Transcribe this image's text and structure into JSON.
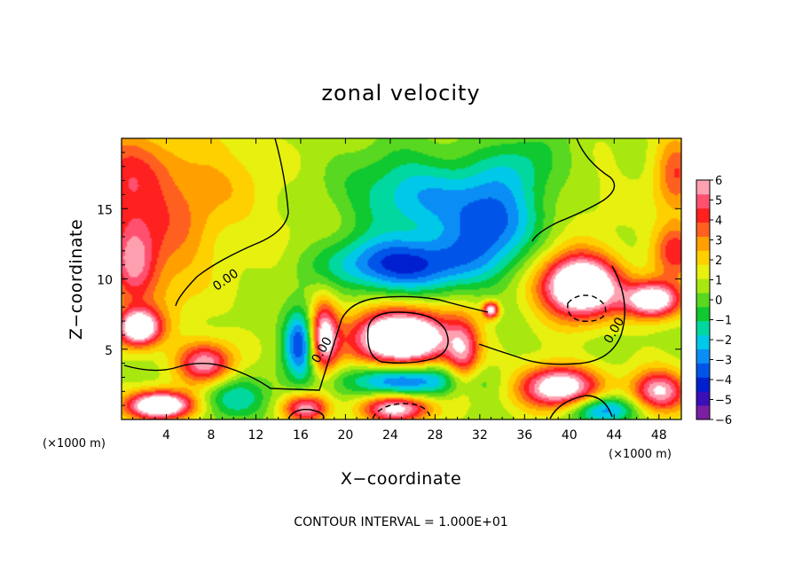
{
  "chart_data": {
    "type": "heatmap",
    "title": "zonal velocity",
    "xlabel": "X−coordinate",
    "ylabel": "Z−coordinate",
    "x_unit": "(×1000 m)",
    "y_unit": "(×1000 m)",
    "xlim": [
      0,
      50
    ],
    "ylim": [
      0,
      20
    ],
    "x_ticks": [
      4,
      8,
      12,
      16,
      20,
      24,
      28,
      32,
      36,
      40,
      44,
      48
    ],
    "y_ticks": [
      5,
      10,
      15
    ],
    "colorbar": {
      "range": [
        -6,
        6
      ],
      "ticks": [
        6,
        5,
        4,
        3,
        2,
        1,
        0,
        -1,
        -2,
        -3,
        -4,
        -5,
        -6
      ],
      "tick_labels": [
        "6",
        "5",
        "4",
        "3",
        "2",
        "1",
        "0",
        "−1",
        "−2",
        "−3",
        "−4",
        "−5",
        "−6"
      ],
      "colors": [
        "#7a1fa2",
        "#3a10b8",
        "#0020d0",
        "#0055e8",
        "#0a8ef5",
        "#00c8e8",
        "#00d8a0",
        "#10c830",
        "#58d820",
        "#a8e810",
        "#e8f010",
        "#ffd000",
        "#ffa000",
        "#ff6020",
        "#ff2020",
        "#ff5070",
        "#ffa0b0"
      ]
    },
    "contour_labels": [
      "0.00",
      "0.00",
      "0.00"
    ],
    "zero_contour_label_positions": [
      [
        9.5,
        9.7
      ],
      [
        18.2,
        4.8
      ],
      [
        44.3,
        6.2
      ]
    ],
    "note": "CONTOUR INTERVAL = 1.000E+01",
    "features": [
      {
        "x": 0,
        "z": 17,
        "value": 3.2,
        "sx": 4,
        "sz": 4
      },
      {
        "x": 1,
        "z": 11,
        "value": 3.5,
        "sx": 2,
        "sz": 3
      },
      {
        "x": 4,
        "z": 12,
        "value": 2.0,
        "sx": 4,
        "sz": 5
      },
      {
        "x": 8,
        "z": 17,
        "value": 1.5,
        "sx": 5,
        "sz": 4
      },
      {
        "x": 16,
        "z": 12,
        "value": 0.5,
        "sx": 6,
        "sz": 4
      },
      {
        "x": 26,
        "z": 16,
        "value": -3.0,
        "sx": 6,
        "sz": 3
      },
      {
        "x": 25,
        "z": 11,
        "value": -5.0,
        "sx": 7,
        "sz": 2
      },
      {
        "x": 33,
        "z": 14,
        "value": -4.0,
        "sx": 4,
        "sz": 3
      },
      {
        "x": 36,
        "z": 18,
        "value": -1.8,
        "sx": 4,
        "sz": 2.5
      },
      {
        "x": 42,
        "z": 16,
        "value": 0.5,
        "sx": 4,
        "sz": 3
      },
      {
        "x": 49.5,
        "z": 17.5,
        "value": 3.0,
        "sx": 2,
        "sz": 3
      },
      {
        "x": 49.5,
        "z": 12,
        "value": 3.5,
        "sx": 2,
        "sz": 2
      },
      {
        "x": 41,
        "z": 9.5,
        "value": 9.0,
        "sx": 3.5,
        "sz": 2.2
      },
      {
        "x": 47.5,
        "z": 8.5,
        "value": 7.0,
        "sx": 2.5,
        "sz": 1.3
      },
      {
        "x": 25,
        "z": 5.8,
        "value": 9.0,
        "sx": 4.5,
        "sz": 2.0
      },
      {
        "x": 25.5,
        "z": 2.8,
        "value": -4.5,
        "sx": 6,
        "sz": 1.2
      },
      {
        "x": 16,
        "z": 5.5,
        "value": -5.0,
        "sx": 1.5,
        "sz": 2.5
      },
      {
        "x": 18,
        "z": 5.8,
        "value": 6.0,
        "sx": 1.3,
        "sz": 2.5
      },
      {
        "x": 30.5,
        "z": 4.5,
        "value": 4.0,
        "sx": 1.5,
        "sz": 2.5
      },
      {
        "x": 33,
        "z": 7.8,
        "value": 6.0,
        "sx": 0.7,
        "sz": 0.6
      },
      {
        "x": 1.5,
        "z": 6.5,
        "value": 7.0,
        "sx": 2,
        "sz": 1.3
      },
      {
        "x": 7.5,
        "z": 4.0,
        "value": 5.0,
        "sx": 2.5,
        "sz": 1.5
      },
      {
        "x": 3.5,
        "z": 1.0,
        "value": 8.0,
        "sx": 3,
        "sz": 1.0
      },
      {
        "x": 39,
        "z": 2.3,
        "value": 7.0,
        "sx": 3.5,
        "sz": 1.5
      },
      {
        "x": 48,
        "z": 2.0,
        "value": 5.5,
        "sx": 2.5,
        "sz": 1.5
      },
      {
        "x": 43,
        "z": 0.7,
        "value": -4.0,
        "sx": 3,
        "sz": 1.0
      },
      {
        "x": 24.5,
        "z": 0.8,
        "value": 6.0,
        "sx": 3,
        "sz": 1.0
      },
      {
        "x": 16.5,
        "z": 0.8,
        "value": 5.0,
        "sx": 2,
        "sz": 1.0
      },
      {
        "x": 10,
        "z": 1.5,
        "value": -2.5,
        "sx": 3,
        "sz": 1.5
      }
    ]
  }
}
